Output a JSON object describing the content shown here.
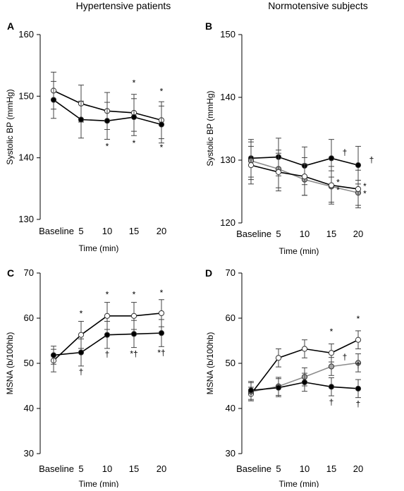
{
  "column_titles": [
    "Hypertensive patients",
    "Normotensive subjects"
  ],
  "chart_data": [
    {
      "type": "line",
      "panel": "A",
      "xlabel": "Time (min)",
      "ylabel": "Systolic BP (mmHg)",
      "categories": [
        "Baseline",
        "5",
        "10",
        "15",
        "20"
      ],
      "ylim": [
        130,
        160
      ],
      "yticks": [
        130,
        140,
        150,
        160
      ],
      "series": [
        {
          "marker": "open",
          "values": [
            150.9,
            148.8,
            147.6,
            147.3,
            146.1
          ],
          "errors": [
            3.0,
            3.0,
            3.0,
            3.0,
            3.0
          ]
        },
        {
          "marker": "filled",
          "values": [
            149.4,
            146.2,
            146.0,
            146.6,
            145.4
          ],
          "errors": [
            3.0,
            3.0,
            3.0,
            3.0,
            3.0
          ]
        }
      ],
      "annotations": [
        {
          "x": 3,
          "y": 151.7,
          "text": "*"
        },
        {
          "x": 4,
          "y": 150.3,
          "text": "*"
        },
        {
          "x": 2,
          "y": 141.4,
          "text": "*"
        },
        {
          "x": 3,
          "y": 141.9,
          "text": "*"
        },
        {
          "x": 4,
          "y": 141.2,
          "text": "*"
        }
      ]
    },
    {
      "type": "line",
      "panel": "B",
      "xlabel": "Time (min)",
      "ylabel": "Systolic BP (mmHg)",
      "categories": [
        "Baseline",
        "5",
        "10",
        "15",
        "20"
      ],
      "ylim": [
        120,
        150
      ],
      "yticks": [
        120,
        130,
        140,
        150
      ],
      "series": [
        {
          "marker": "filled",
          "values": [
            130.3,
            130.5,
            129.1,
            130.3,
            129.2
          ],
          "errors": [
            3.0,
            3.0,
            3.0,
            3.0,
            3.0
          ]
        },
        {
          "marker": "grey",
          "values": [
            129.9,
            128.6,
            126.9,
            125.8,
            124.8
          ],
          "errors": [
            3.0,
            3.0,
            2.5,
            2.5,
            2.0
          ]
        },
        {
          "marker": "open",
          "values": [
            129.2,
            128.1,
            127.4,
            126.0,
            125.4
          ],
          "errors": [
            3.0,
            3.0,
            3.0,
            3.0,
            3.0
          ]
        }
      ],
      "annotations": [
        {
          "x": 3.5,
          "y": 130.8,
          "text": "†"
        },
        {
          "x": 4.5,
          "y": 129.6,
          "text": "†"
        },
        {
          "x": 3.25,
          "y": 126.0,
          "text": "*"
        },
        {
          "x": 3.25,
          "y": 124.8,
          "text": "*"
        },
        {
          "x": 4.25,
          "y": 125.4,
          "text": "*"
        },
        {
          "x": 4.25,
          "y": 124.2,
          "text": "*"
        }
      ]
    },
    {
      "type": "line",
      "panel": "C",
      "xlabel": "Time (min)",
      "ylabel": "MSNA  (b/100hb)",
      "categories": [
        "Baseline",
        "5",
        "10",
        "15",
        "20"
      ],
      "ylim": [
        30,
        70
      ],
      "yticks": [
        30,
        40,
        50,
        60,
        70
      ],
      "series": [
        {
          "marker": "open",
          "values": [
            50.6,
            56.3,
            60.5,
            60.5,
            61.1
          ],
          "errors": [
            2.5,
            3.0,
            3.0,
            3.0,
            3.0
          ]
        },
        {
          "marker": "filled",
          "values": [
            51.8,
            52.4,
            56.3,
            56.5,
            56.7
          ],
          "errors": [
            2.0,
            3.0,
            3.0,
            3.0,
            3.0
          ]
        }
      ],
      "annotations": [
        {
          "x": 1,
          "y": 60.4,
          "text": "*"
        },
        {
          "x": 2,
          "y": 64.6,
          "text": "*"
        },
        {
          "x": 3,
          "y": 64.6,
          "text": "*"
        },
        {
          "x": 4,
          "y": 65.0,
          "text": "*"
        },
        {
          "x": 1,
          "y": 47.5,
          "text": "†"
        },
        {
          "x": 2,
          "y": 51.4,
          "text": "†"
        },
        {
          "x": 3,
          "y": 51.5,
          "text": "*†"
        },
        {
          "x": 4,
          "y": 51.7,
          "text": "*†"
        }
      ]
    },
    {
      "type": "line",
      "panel": "D",
      "xlabel": "Time (min)",
      "ylabel": "MSNA  (b/100hb)",
      "categories": [
        "Baseline",
        "5",
        "10",
        "15",
        "20"
      ],
      "ylim": [
        30,
        70
      ],
      "yticks": [
        30,
        40,
        50,
        60,
        70
      ],
      "series": [
        {
          "marker": "open",
          "values": [
            43.2,
            51.2,
            53.2,
            52.3,
            55.2
          ],
          "errors": [
            1.5,
            2.0,
            2.0,
            2.0,
            2.0
          ]
        },
        {
          "marker": "grey",
          "values": [
            43.7,
            44.9,
            47.0,
            49.3,
            50.1
          ],
          "errors": [
            2.0,
            2.0,
            2.0,
            2.0,
            2.0
          ]
        },
        {
          "marker": "filled",
          "values": [
            44.0,
            44.6,
            45.8,
            44.8,
            44.4
          ],
          "errors": [
            2.0,
            2.0,
            2.0,
            2.0,
            2.0
          ]
        }
      ],
      "annotations": [
        {
          "x": 3,
          "y": 56.4,
          "text": "*"
        },
        {
          "x": 4,
          "y": 59.2,
          "text": "*"
        },
        {
          "x": 3.5,
          "y": 50.8,
          "text": "†"
        },
        {
          "x": 4,
          "y": 49.0,
          "text": "†"
        },
        {
          "x": 3,
          "y": 40.8,
          "text": "†"
        },
        {
          "x": 4,
          "y": 40.4,
          "text": "†"
        }
      ]
    }
  ]
}
